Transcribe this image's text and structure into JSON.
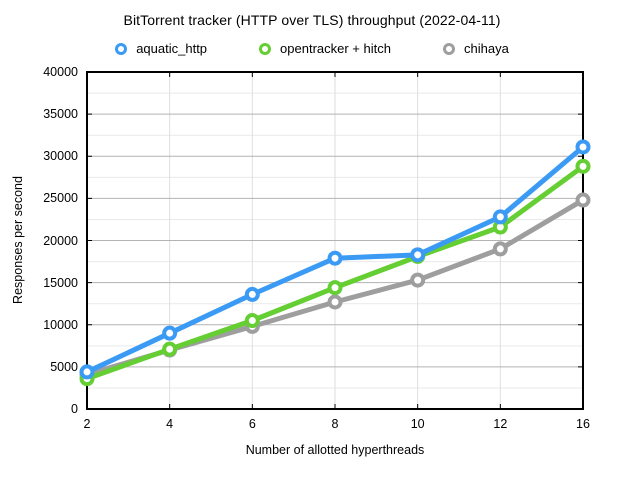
{
  "chart_data": {
    "type": "line",
    "title": "BitTorrent tracker (HTTP over TLS) throughput (2022-04-11)",
    "xlabel": "Number of allotted hyperthreads",
    "ylabel": "Responses per second",
    "categories": [
      2,
      4,
      6,
      8,
      10,
      12,
      16
    ],
    "x_tick_labels": [
      "2",
      "4",
      "6",
      "8",
      "10",
      "12",
      "16"
    ],
    "y_ticks": [
      0,
      5000,
      10000,
      15000,
      20000,
      25000,
      30000,
      35000,
      40000
    ],
    "y_minor_step": 2500,
    "ylim": [
      0,
      40000
    ],
    "grid": true,
    "legend_position": "top",
    "series": [
      {
        "name": "aquatic_http",
        "color": "#3B9BF4",
        "values": [
          4400,
          9000,
          13600,
          17900,
          18300,
          22800,
          31100
        ]
      },
      {
        "name": "opentracker + hitch",
        "color": "#64CE33",
        "values": [
          3600,
          7100,
          10500,
          14400,
          18100,
          21600,
          28800
        ]
      },
      {
        "name": "chihaya",
        "color": "#9E9E9E",
        "values": [
          4100,
          7000,
          9800,
          12700,
          15300,
          19000,
          24800
        ]
      }
    ],
    "colors": {
      "grid_major": "#b3b3b3",
      "grid_minor": "#e9e9e9",
      "grid_vertical": "#dedede",
      "axis_border": "#000000",
      "marker_fill": "#ffffff"
    }
  }
}
